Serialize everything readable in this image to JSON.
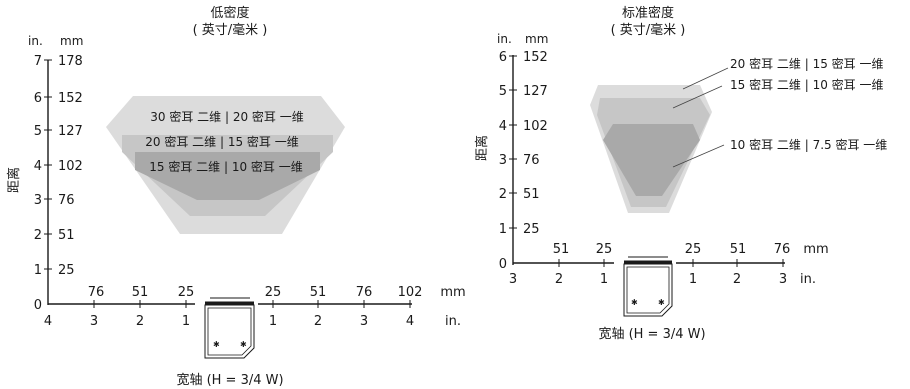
{
  "left_diagram": {
    "title": "低密度",
    "subtitle": "( 英寸/毫米 )",
    "y_axis_label": "距离",
    "y_unit_in": "in.",
    "y_unit_mm": "mm",
    "y_ticks": [
      {
        "in": "7",
        "mm": "178"
      },
      {
        "in": "6",
        "mm": "152"
      },
      {
        "in": "5",
        "mm": "127"
      },
      {
        "in": "4",
        "mm": "102"
      },
      {
        "in": "3",
        "mm": "76"
      },
      {
        "in": "2",
        "mm": "51"
      },
      {
        "in": "1",
        "mm": "25"
      },
      {
        "in": "0",
        "mm": ""
      }
    ],
    "x_mm_left": [
      "76",
      "51",
      "25"
    ],
    "x_mm_right": [
      "25",
      "51",
      "76",
      "102"
    ],
    "x_mm_unit": "mm",
    "x_in_left": [
      "4",
      "3",
      "2",
      "1"
    ],
    "x_in_right": [
      "1",
      "2",
      "3",
      "4"
    ],
    "x_in_unit": "in.",
    "zones": [
      "30 密耳 二维 | 20 密耳 一维",
      "20 密耳 二维 | 15 密耳 一维",
      "15 密耳 二维 | 10 密耳 一维"
    ],
    "caption": "宽轴 (H = 3/4 W)"
  },
  "right_diagram": {
    "title": "标准密度",
    "subtitle": "( 英寸/毫米 )",
    "y_axis_label": "距离",
    "y_unit_in": "in.",
    "y_unit_mm": "mm",
    "y_ticks": [
      {
        "in": "6",
        "mm": "152"
      },
      {
        "in": "5",
        "mm": "127"
      },
      {
        "in": "4",
        "mm": "102"
      },
      {
        "in": "3",
        "mm": "76"
      },
      {
        "in": "2",
        "mm": "51"
      },
      {
        "in": "1",
        "mm": "25"
      },
      {
        "in": "0",
        "mm": ""
      }
    ],
    "x_mm_left": [
      "51",
      "25"
    ],
    "x_mm_right": [
      "25",
      "51",
      "76"
    ],
    "x_mm_unit": "mm",
    "x_in_left": [
      "3",
      "2",
      "1"
    ],
    "x_in_right": [
      "1",
      "2",
      "3"
    ],
    "x_in_unit": "in.",
    "zones": [
      "20 密耳 二维 | 15 密耳 一维",
      "15 密耳 二维 | 10 密耳 一维",
      "10 密耳 二维 | 7.5 密耳 一维"
    ],
    "caption": "宽轴 (H = 3/4 W)"
  },
  "colors": {
    "zone_outer": "#dcdcdc",
    "zone_middle": "#c6c6c6",
    "zone_inner": "#a9a9a9",
    "ink": "#1a1a1a"
  }
}
